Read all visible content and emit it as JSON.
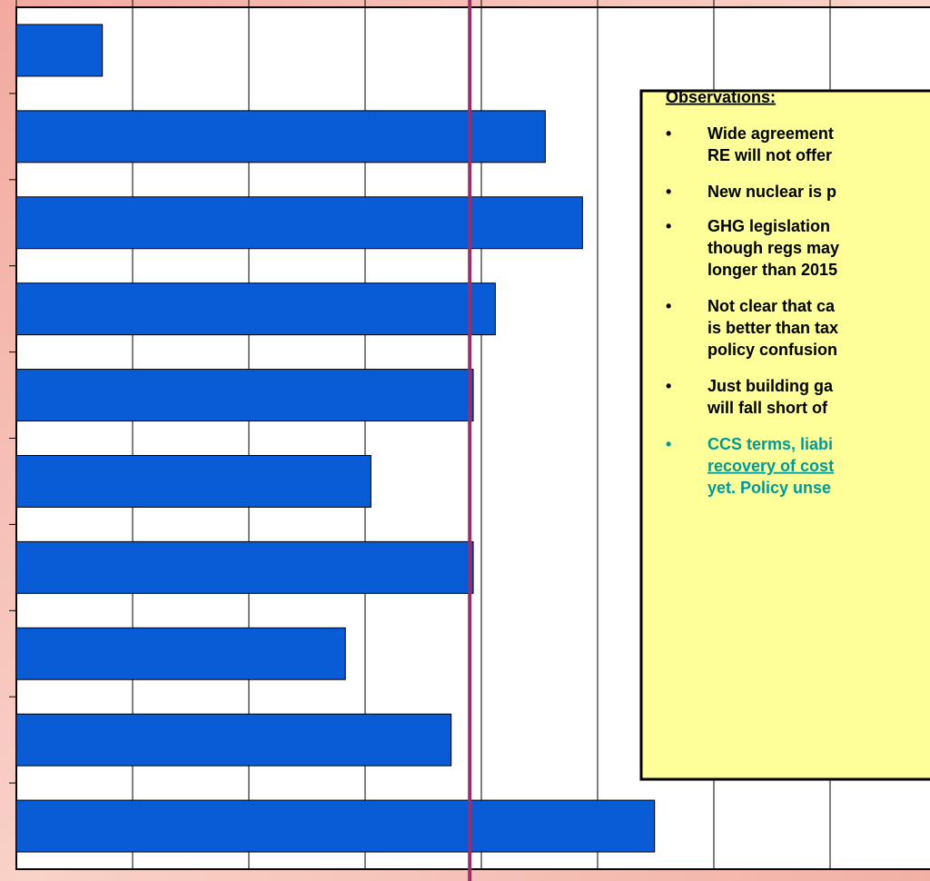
{
  "chart_data": {
    "type": "bar",
    "orientation": "horizontal",
    "categories": [
      null,
      null,
      null,
      null,
      null,
      null,
      null,
      null,
      null,
      null
    ],
    "values": [
      0.74,
      4.55,
      4.87,
      4.12,
      3.93,
      3.05,
      3.93,
      2.83,
      3.74,
      5.49
    ],
    "color": "#0a5cd6",
    "xlim": [
      0,
      8
    ],
    "xticks": [
      0,
      1,
      2,
      3,
      4,
      5,
      6,
      7,
      8
    ],
    "grid": true,
    "reference_line": {
      "value": 3.9,
      "color": "#9b2f6e"
    }
  },
  "observations": {
    "title": "Observations:",
    "items": [
      {
        "lines": [
          "Wide agreement",
          "RE will not offer"
        ]
      },
      {
        "lines": [
          "New nuclear is p"
        ]
      },
      {
        "lines": [
          "GHG legislation",
          "though regs may",
          "longer than 2015"
        ]
      },
      {
        "lines": [
          "Not clear that ca",
          "is better than tax",
          "policy confusion"
        ]
      },
      {
        "lines": [
          "Just building ga",
          "will fall short of"
        ]
      },
      {
        "lines": [
          "CCS terms, liabi",
          "recovery of cost",
          "yet.  Policy unse"
        ],
        "color": "#009999"
      }
    ]
  }
}
